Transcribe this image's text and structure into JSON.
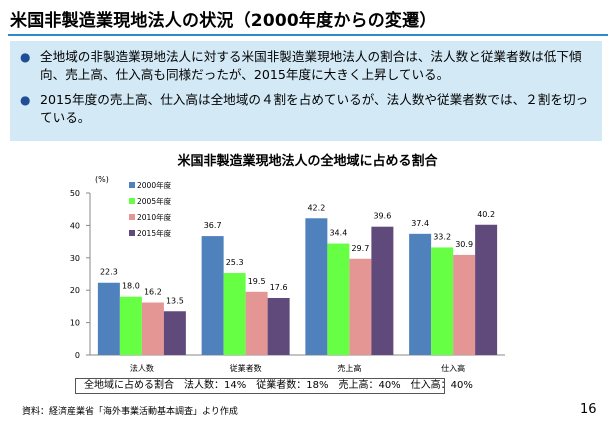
{
  "slide": {
    "title": "米国非製造業現地法人の状況（2000年度からの変遷）",
    "bullets": [
      "全地域の非製造業現地法人に対する米国非製造業現地法人の割合は、法人数と従業者数は低下傾向、売上高、仕入高も同様だったが、2015年度に大きく上昇している。",
      "2015年度の売上高、仕入高は全地域の４割を占めているが、法人数や従業者数では、２割を切っている。"
    ],
    "note": "全地域に占める割合　法人数：14%　従業者数：18%　売上高：40%　仕入高：40%",
    "source": "資料：経済産業省「海外事業活動基本調査」より作成",
    "page_number": "16"
  },
  "colors": {
    "accent": "#2e8bc9",
    "summary_bg": "#d3e9f6",
    "bullet": "#1f4e96"
  },
  "chart_data": {
    "type": "bar",
    "title": "米国非製造業現地法人の全地域に占める割合",
    "ylabel": "(%)",
    "xlabel": "",
    "ylim": [
      0,
      50
    ],
    "yticks": [
      0,
      10,
      20,
      30,
      40,
      50
    ],
    "categories": [
      "法人数",
      "従業者数",
      "売上高",
      "仕入高"
    ],
    "legend_position": "top-left",
    "grid": false,
    "series": [
      {
        "name": "2000年度",
        "color": "#4f81bd",
        "values": [
          22.3,
          36.7,
          42.2,
          37.4
        ]
      },
      {
        "name": "2005年度",
        "color": "#66ff44",
        "values": [
          18.0,
          25.3,
          34.4,
          33.2
        ]
      },
      {
        "name": "2010年度",
        "color": "#e39694",
        "values": [
          16.2,
          19.5,
          29.7,
          30.9
        ]
      },
      {
        "name": "2015年度",
        "color": "#604a7b",
        "values": [
          13.5,
          17.6,
          39.6,
          40.2
        ]
      }
    ]
  }
}
